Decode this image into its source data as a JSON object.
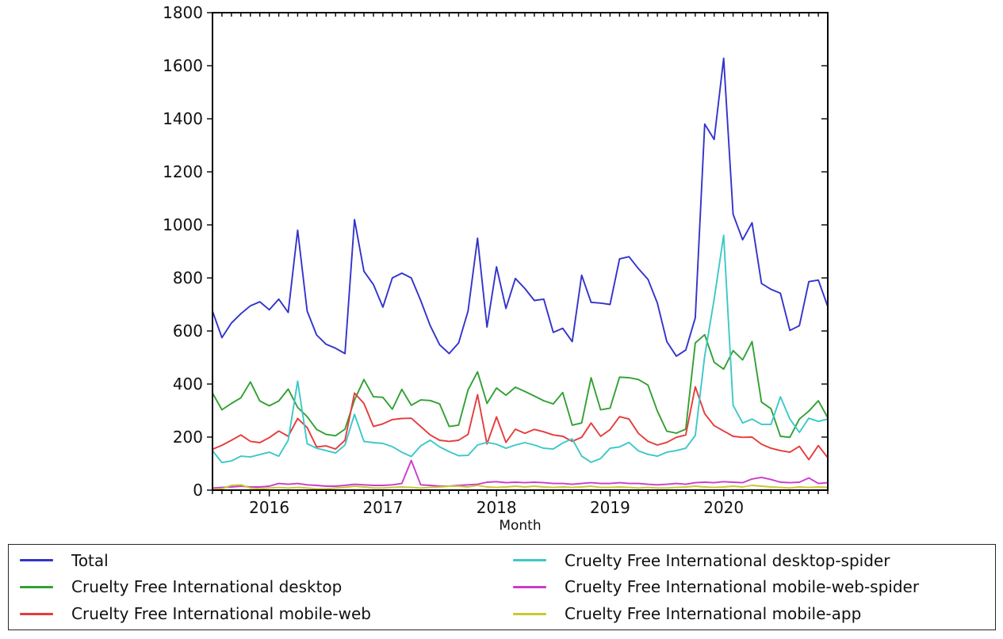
{
  "figure": {
    "background": "#ffffff"
  },
  "axes": {
    "xlabel": "Month",
    "ylim": [
      0,
      1800
    ],
    "y_ticks": [
      0,
      200,
      400,
      600,
      800,
      1000,
      1200,
      1400,
      1600,
      1800
    ],
    "year_ticks": [
      {
        "label": "2016",
        "month_index": 6
      },
      {
        "label": "2017",
        "month_index": 18
      },
      {
        "label": "2018",
        "month_index": 30
      },
      {
        "label": "2019",
        "month_index": 42
      },
      {
        "label": "2020",
        "month_index": 54
      }
    ]
  },
  "legend": {
    "entries": [
      {
        "label": "Total",
        "color": "#3333cc"
      },
      {
        "label": "Cruelty Free International desktop",
        "color": "#33a033"
      },
      {
        "label": "Cruelty Free International mobile-web",
        "color": "#e63c3c"
      },
      {
        "label": "Cruelty Free International desktop-spider",
        "color": "#3cc8c8"
      },
      {
        "label": "Cruelty Free International mobile-web-spider",
        "color": "#cc3ccc"
      },
      {
        "label": "Cruelty Free International mobile-app",
        "color": "#c8c832"
      }
    ]
  },
  "chart_data": {
    "type": "line",
    "title": "",
    "xlabel": "Month",
    "ylabel": "",
    "ylim": [
      0,
      1800
    ],
    "grid": false,
    "legend_position": "bottom",
    "x": [
      "2015-07",
      "2015-08",
      "2015-09",
      "2015-10",
      "2015-11",
      "2015-12",
      "2016-01",
      "2016-02",
      "2016-03",
      "2016-04",
      "2016-05",
      "2016-06",
      "2016-07",
      "2016-08",
      "2016-09",
      "2016-10",
      "2016-11",
      "2016-12",
      "2017-01",
      "2017-02",
      "2017-03",
      "2017-04",
      "2017-05",
      "2017-06",
      "2017-07",
      "2017-08",
      "2017-09",
      "2017-10",
      "2017-11",
      "2017-12",
      "2018-01",
      "2018-02",
      "2018-03",
      "2018-04",
      "2018-05",
      "2018-06",
      "2018-07",
      "2018-08",
      "2018-09",
      "2018-10",
      "2018-11",
      "2018-12",
      "2019-01",
      "2019-02",
      "2019-03",
      "2019-04",
      "2019-05",
      "2019-06",
      "2019-07",
      "2019-08",
      "2019-09",
      "2019-10",
      "2019-11",
      "2019-12",
      "2020-01",
      "2020-02",
      "2020-03",
      "2020-04",
      "2020-05",
      "2020-06",
      "2020-07",
      "2020-08",
      "2020-09",
      "2020-10",
      "2020-11",
      "2020-12"
    ],
    "series": [
      {
        "name": "Total",
        "color": "#3333cc",
        "values": [
          675,
          575,
          630,
          665,
          695,
          710,
          680,
          720,
          670,
          980,
          675,
          585,
          550,
          535,
          515,
          1020,
          825,
          775,
          690,
          800,
          818,
          800,
          715,
          620,
          548,
          515,
          555,
          675,
          950,
          615,
          842,
          685,
          798,
          760,
          715,
          720,
          595,
          610,
          560,
          810,
          708,
          705,
          700,
          872,
          880,
          835,
          795,
          705,
          560,
          505,
          528,
          650,
          1380,
          1322,
          1628,
          1040,
          944,
          1008,
          779,
          757,
          742,
          602,
          620,
          786,
          792,
          692
        ]
      },
      {
        "name": "Cruelty Free International desktop",
        "color": "#33a033",
        "values": [
          366,
          303,
          327,
          348,
          408,
          336,
          318,
          336,
          381,
          312,
          277,
          229,
          210,
          205,
          230,
          340,
          417,
          352,
          350,
          305,
          380,
          320,
          340,
          338,
          325,
          240,
          245,
          378,
          446,
          327,
          385,
          358,
          388,
          372,
          355,
          337,
          325,
          368,
          245,
          253,
          424,
          303,
          309,
          426,
          424,
          417,
          396,
          298,
          222,
          215,
          230,
          555,
          586,
          482,
          456,
          526,
          491,
          560,
          332,
          307,
          203,
          199,
          268,
          298,
          337,
          273
        ]
      },
      {
        "name": "Cruelty Free International mobile-web",
        "color": "#e63c3c",
        "values": [
          154,
          169,
          188,
          208,
          184,
          179,
          198,
          223,
          203,
          270,
          236,
          163,
          167,
          155,
          188,
          366,
          327,
          240,
          250,
          266,
          270,
          271,
          240,
          208,
          188,
          184,
          188,
          210,
          360,
          174,
          276,
          180,
          230,
          214,
          229,
          220,
          208,
          203,
          184,
          199,
          253,
          203,
          228,
          277,
          268,
          214,
          184,
          170,
          180,
          199,
          208,
          390,
          288,
          243,
          223,
          203,
          199,
          200,
          173,
          158,
          149,
          143,
          165,
          115,
          168,
          122
        ]
      },
      {
        "name": "Cruelty Free International desktop-spider",
        "color": "#3cc8c8",
        "values": [
          149,
          104,
          110,
          128,
          125,
          134,
          143,
          128,
          188,
          411,
          175,
          158,
          149,
          140,
          170,
          286,
          184,
          179,
          176,
          164,
          143,
          127,
          167,
          188,
          163,
          145,
          130,
          131,
          170,
          180,
          173,
          158,
          170,
          179,
          170,
          158,
          155,
          178,
          193,
          128,
          105,
          119,
          158,
          163,
          180,
          148,
          135,
          128,
          143,
          149,
          158,
          206,
          506,
          720,
          961,
          320,
          253,
          268,
          248,
          248,
          352,
          268,
          218,
          271,
          259,
          268
        ]
      },
      {
        "name": "Cruelty Free International mobile-web-spider",
        "color": "#cc3ccc",
        "values": [
          8,
          10,
          12,
          15,
          12,
          12,
          15,
          25,
          22,
          25,
          20,
          18,
          15,
          15,
          18,
          22,
          20,
          18,
          18,
          20,
          25,
          112,
          20,
          18,
          15,
          15,
          18,
          20,
          22,
          30,
          32,
          28,
          30,
          28,
          30,
          28,
          25,
          25,
          22,
          25,
          28,
          25,
          25,
          28,
          25,
          25,
          22,
          20,
          22,
          25,
          22,
          28,
          30,
          28,
          32,
          30,
          28,
          42,
          48,
          40,
          30,
          28,
          30,
          46,
          25,
          28
        ]
      },
      {
        "name": "Cruelty Free International mobile-app",
        "color": "#c8c832",
        "values": [
          3,
          5,
          18,
          20,
          8,
          5,
          8,
          10,
          8,
          10,
          8,
          5,
          5,
          8,
          10,
          15,
          12,
          8,
          8,
          10,
          12,
          10,
          8,
          10,
          12,
          15,
          15,
          12,
          18,
          12,
          10,
          12,
          15,
          12,
          15,
          12,
          10,
          12,
          10,
          12,
          15,
          10,
          10,
          12,
          10,
          8,
          10,
          8,
          8,
          10,
          12,
          15,
          12,
          10,
          12,
          15,
          12,
          18,
          15,
          12,
          10,
          8,
          12,
          10,
          12,
          10
        ]
      }
    ]
  }
}
